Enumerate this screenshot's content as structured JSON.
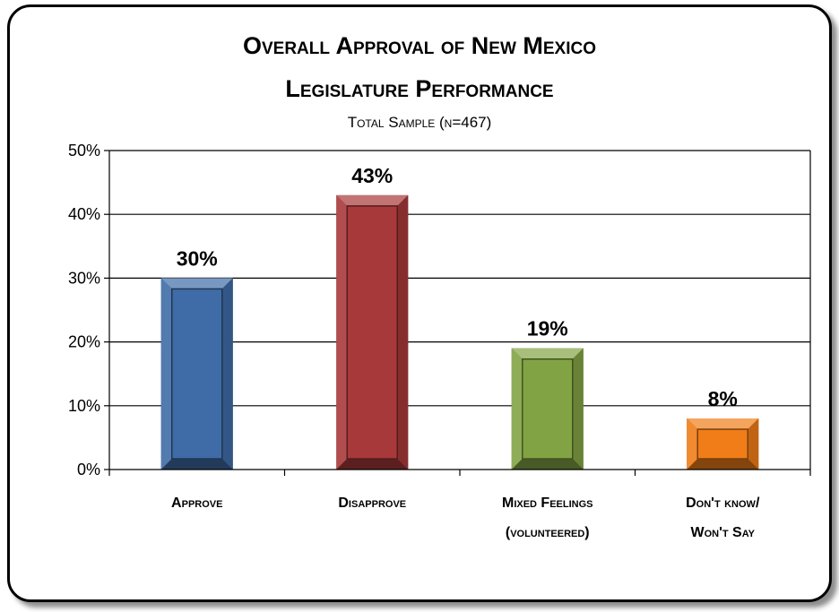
{
  "chart_data": {
    "type": "bar",
    "title_lines": [
      "Overall Approval of New Mexico",
      "Legislature Performance"
    ],
    "subtitle": "Total Sample (n=467)",
    "categories": [
      [
        "Approve"
      ],
      [
        "Disapprove"
      ],
      [
        "Mixed Feelings",
        "(volunteered)"
      ],
      [
        "Don't know/",
        "Won't Say"
      ]
    ],
    "values": [
      30,
      43,
      19,
      8
    ],
    "data_labels": [
      "30%",
      "43%",
      "19%",
      "8%"
    ],
    "colors": [
      "#3F6CA6",
      "#A8393A",
      "#82A343",
      "#F07D18"
    ],
    "yticks": [
      "0%",
      "10%",
      "20%",
      "30%",
      "40%",
      "50%"
    ],
    "ylim": [
      0,
      50
    ],
    "grid": true,
    "legend": "none"
  }
}
